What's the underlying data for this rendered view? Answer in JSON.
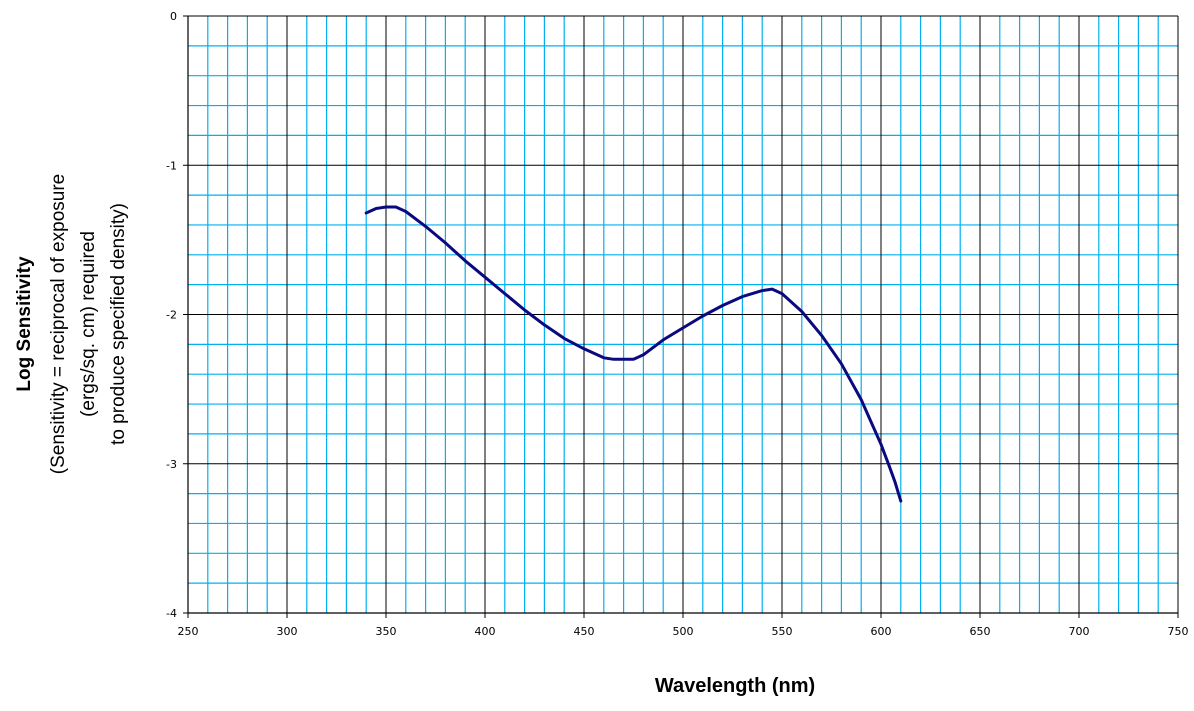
{
  "chart_data": {
    "type": "line",
    "title": "",
    "xlabel": "Wavelength (nm)",
    "ylabel_lines": [
      "Log Sensitivity",
      "(Sensitivity = reciprocal of exposure",
      "(ergs/sq. cm) required",
      "to produce specified density)"
    ],
    "xlim": [
      250,
      750
    ],
    "ylim": [
      -4,
      0
    ],
    "x_ticks": [
      250,
      300,
      350,
      400,
      450,
      500,
      550,
      600,
      650,
      700,
      750
    ],
    "y_ticks": [
      0,
      -1,
      -2,
      -3,
      -4
    ],
    "grid": true,
    "colors": {
      "minor_grid": "#00b0f0",
      "major_grid": "#000000",
      "line": "#0a0a80"
    },
    "series": [
      {
        "x": [
          340,
          345,
          350,
          355,
          360,
          370,
          380,
          390,
          400,
          410,
          420,
          430,
          440,
          450,
          460,
          465,
          470,
          475,
          480,
          490,
          500,
          510,
          520,
          530,
          540,
          545,
          550,
          560,
          570,
          580,
          590,
          595,
          600,
          604,
          607,
          610
        ],
        "y": [
          -1.32,
          -1.29,
          -1.28,
          -1.28,
          -1.31,
          -1.41,
          -1.52,
          -1.64,
          -1.75,
          -1.86,
          -1.97,
          -2.07,
          -2.16,
          -2.23,
          -2.29,
          -2.3,
          -2.3,
          -2.3,
          -2.27,
          -2.17,
          -2.09,
          -2.01,
          -1.94,
          -1.88,
          -1.84,
          -1.83,
          -1.86,
          -1.98,
          -2.14,
          -2.33,
          -2.57,
          -2.72,
          -2.87,
          -3.01,
          -3.12,
          -3.25
        ]
      }
    ]
  }
}
